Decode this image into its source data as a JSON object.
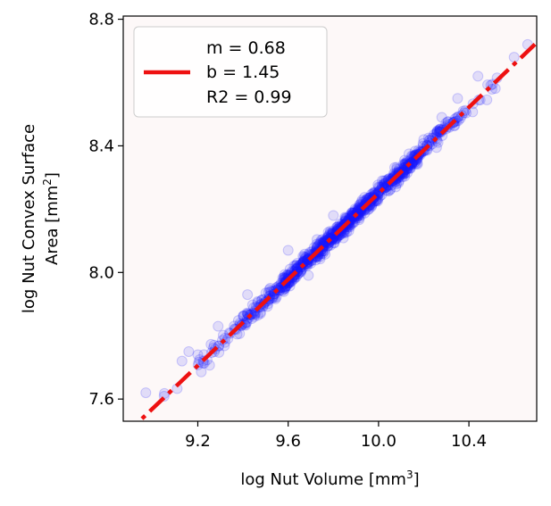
{
  "chart_data": {
    "type": "scatter",
    "xlabel": "log Nut Volume [mm",
    "xlabel_sup": "3",
    "xlabel_end": "]",
    "ylabel_line1": "log Nut Convex Surface",
    "ylabel_line2": "Area [mm",
    "ylabel_sup": "2",
    "ylabel_end": "]",
    "xlim": [
      8.87,
      10.7
    ],
    "ylim": [
      7.53,
      8.81
    ],
    "xticks": [
      9.2,
      9.6,
      10.0,
      10.4
    ],
    "xtick_labels": [
      "9.2",
      "9.6",
      "10.0",
      "10.4"
    ],
    "yticks": [
      7.6,
      8.0,
      8.4,
      8.8
    ],
    "ytick_labels": [
      "7.6",
      "8.0",
      "8.4",
      "8.8"
    ],
    "fit": {
      "m": 0.68,
      "b": 1.45,
      "style": "dash-dot",
      "color": "#ee1111"
    },
    "scatter": {
      "color": "#1a1aff",
      "approx_n": 900,
      "x_range": [
        8.97,
        10.67
      ],
      "residual_sd": 0.012,
      "sample_points": [
        [
          8.97,
          7.62
        ],
        [
          9.13,
          7.72
        ],
        [
          9.16,
          7.75
        ],
        [
          9.2,
          7.74
        ],
        [
          9.29,
          7.83
        ],
        [
          9.42,
          7.93
        ],
        [
          9.6,
          8.07
        ],
        [
          9.8,
          8.18
        ],
        [
          10.0,
          8.27
        ],
        [
          10.2,
          8.42
        ],
        [
          10.28,
          8.49
        ],
        [
          10.35,
          8.55
        ],
        [
          10.44,
          8.62
        ],
        [
          10.6,
          8.68
        ],
        [
          10.66,
          8.72
        ]
      ]
    },
    "legend": {
      "location": "top-left",
      "lines": [
        "m = 0.68",
        "b = 1.45",
        "R2 = 0.99"
      ]
    },
    "background": "#fdf8f8"
  }
}
